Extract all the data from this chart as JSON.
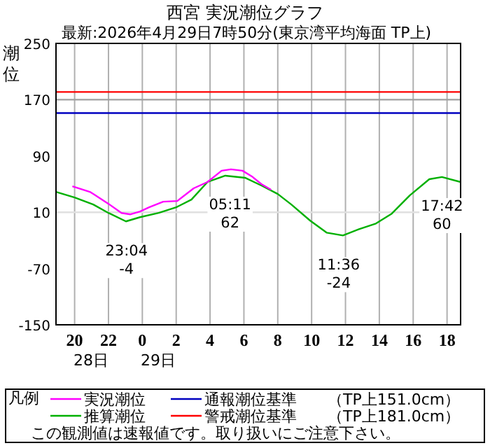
{
  "chart_data": {
    "type": "line",
    "title": "西宮 実況潮位グラフ",
    "subtitle": "最新:2026年4月29日7時50分(東京湾平均海面 TP上)",
    "ylabel": "潮位",
    "legend_title": "凡例",
    "legend": "bottom",
    "grid": "x",
    "xlim": [
      "2026-04-28T18:54",
      "2026-04-29T18:48"
    ],
    "ylim": [
      -150,
      250
    ],
    "xticks": [
      {
        "value": "2026-04-28T20:00",
        "label": "20"
      },
      {
        "value": "2026-04-28T22:00",
        "label": "22"
      },
      {
        "value": "2026-04-29T00:00",
        "label": "0"
      },
      {
        "value": "2026-04-29T02:00",
        "label": "2"
      },
      {
        "value": "2026-04-29T04:00",
        "label": "4"
      },
      {
        "value": "2026-04-29T06:00",
        "label": "6"
      },
      {
        "value": "2026-04-29T08:00",
        "label": "8"
      },
      {
        "value": "2026-04-29T10:00",
        "label": "10"
      },
      {
        "value": "2026-04-29T12:00",
        "label": "12"
      },
      {
        "value": "2026-04-29T14:00",
        "label": "14"
      },
      {
        "value": "2026-04-29T16:00",
        "label": "16"
      },
      {
        "value": "2026-04-29T18:00",
        "label": "18"
      }
    ],
    "yticks": [
      -150,
      -70,
      10,
      90,
      170,
      250
    ],
    "series": [
      {
        "name": "実況潮位",
        "color": "#ff00ff",
        "x": [
          "2026-04-28T19:52",
          "2026-04-28T20:54",
          "2026-04-28T21:06",
          "2026-04-28T22:00",
          "2026-04-28T22:46",
          "2026-04-28T23:18",
          "2026-04-28T23:52",
          "2026-04-29T00:24",
          "2026-04-29T01:14",
          "2026-04-29T02:04",
          "2026-04-29T03:02",
          "2026-04-29T03:51",
          "2026-04-29T04:41",
          "2026-04-29T05:14",
          "2026-04-29T05:55",
          "2026-04-29T06:28",
          "2026-04-29T07:02",
          "2026-04-29T07:36"
        ],
        "values": [
          47,
          39,
          36,
          22,
          9,
          7,
          11,
          17,
          25,
          26,
          44,
          53,
          69,
          71,
          69,
          61,
          50,
          42
        ]
      },
      {
        "name": "推算潮位",
        "color": "#00b000",
        "x": [
          "2026-04-28T18:54",
          "2026-04-28T20:00",
          "2026-04-28T21:06",
          "2026-04-28T22:00",
          "2026-04-28T23:02",
          "2026-04-28T23:52",
          "2026-04-29T00:58",
          "2026-04-29T02:00",
          "2026-04-29T02:54",
          "2026-04-29T03:51",
          "2026-04-29T04:54",
          "2026-04-29T06:04",
          "2026-04-29T07:02",
          "2026-04-29T08:00",
          "2026-04-29T08:48",
          "2026-04-29T09:55",
          "2026-04-29T10:53",
          "2026-04-29T11:51",
          "2026-04-29T12:48",
          "2026-04-29T13:48",
          "2026-04-29T14:44",
          "2026-04-29T15:48",
          "2026-04-29T16:57",
          "2026-04-29T17:42",
          "2026-04-29T18:48"
        ],
        "values": [
          39,
          31,
          21,
          9,
          -3,
          3,
          9,
          17,
          28,
          53,
          62,
          59,
          48,
          36,
          21,
          -2,
          -19,
          -23,
          -14,
          -6,
          8,
          34,
          57,
          60,
          53
        ]
      }
    ],
    "ref_lines": [
      {
        "axis": "y",
        "value": 170,
        "color": "#a0a0a0"
      },
      {
        "axis": "y",
        "value": 10,
        "color": "#e0e0e0"
      },
      {
        "axis": "y",
        "value": 181,
        "color": "#ff0000",
        "label": "警戒潮位基準　　（TP上181.0cm）"
      },
      {
        "axis": "y",
        "value": 151,
        "color": "#0000c0",
        "label": "通報潮位基準　　（TP上151.0cm）"
      }
    ],
    "annotations": [
      {
        "text": "23:04\n-4",
        "x": "2026-04-28T23:04",
        "y": -4
      },
      {
        "text": "05:11\n62",
        "x": "2026-04-29T05:11",
        "y": 62
      },
      {
        "text": "11:36\n-24",
        "x": "2026-04-29T11:36",
        "y": -24
      },
      {
        "text": "17:42\n60",
        "x": "2026-04-29T17:42",
        "y": 60
      },
      "28日",
      "29日",
      "この観測値は速報値です。取り扱いにご注意下さい。"
    ]
  }
}
